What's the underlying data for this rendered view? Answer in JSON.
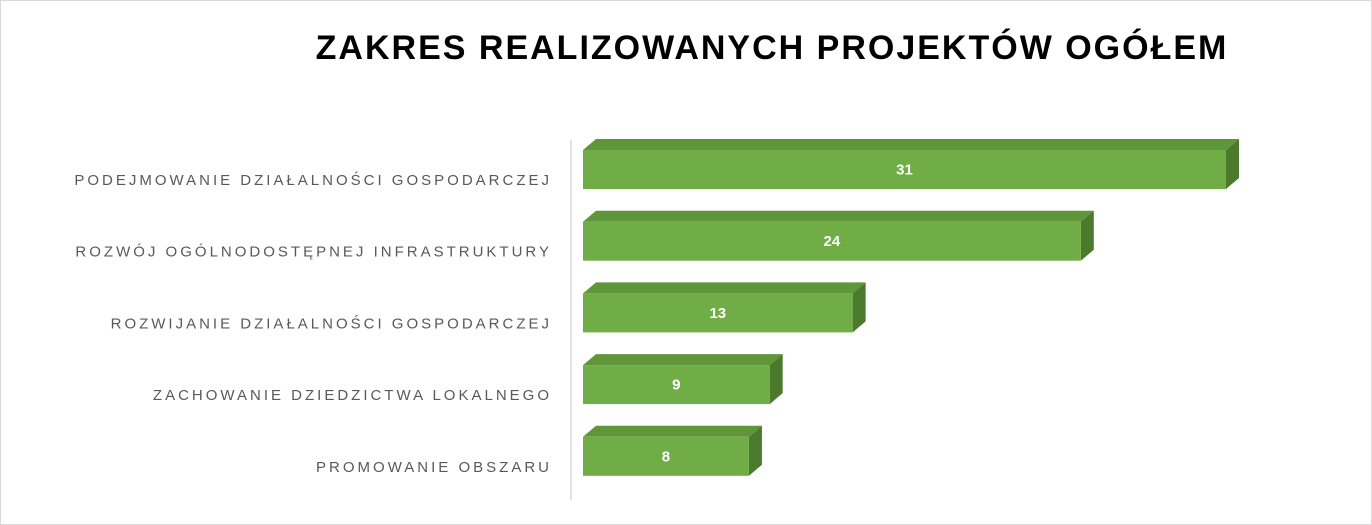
{
  "chart_data": {
    "type": "bar",
    "orientation": "horizontal",
    "title": "ZAKRES REALIZOWANYCH PROJEKTÓW OGÓŁEM",
    "categories": [
      "PODEJMOWANIE DZIAŁALNOŚCI GOSPODARCZEJ",
      "ROZWÓJ OGÓLNODOSTĘPNEJ INFRASTRUKTURY",
      "ROZWIJANIE DZIAŁALNOŚCI GOSPODARCZEJ",
      "ZACHOWANIE DZIEDZICTWA LOKALNEGO",
      "PROMOWANIE OBSZARU"
    ],
    "values": [
      31,
      24,
      13,
      9,
      8
    ],
    "color": "#70ad47"
  }
}
